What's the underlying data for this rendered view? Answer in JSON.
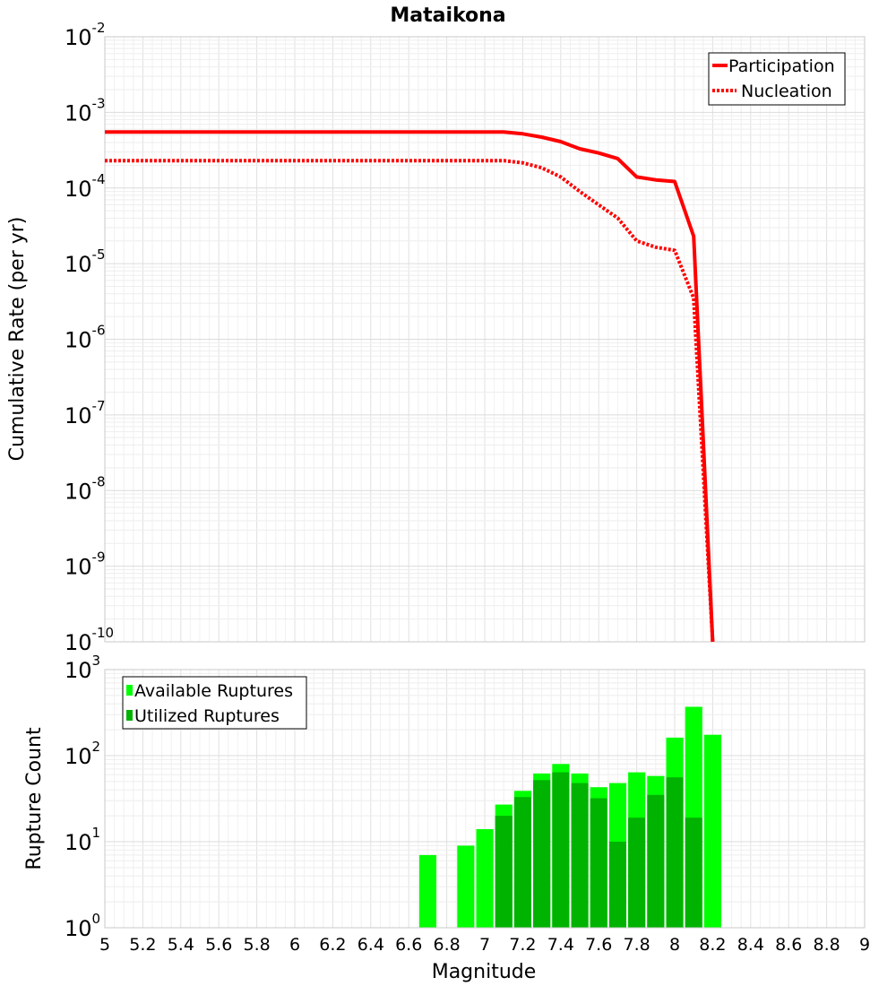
{
  "chart_data": [
    {
      "type": "line",
      "title": "Mataikona",
      "xlabel": "",
      "ylabel": "Cumulative Rate (per yr)",
      "yscale": "log",
      "xlim": [
        5,
        9
      ],
      "ylim_exp": [
        -10,
        -2
      ],
      "y_tick_labels": [
        {
          "base": "10",
          "exp": "-10"
        },
        {
          "base": "10",
          "exp": "-9"
        },
        {
          "base": "10",
          "exp": "-8"
        },
        {
          "base": "10",
          "exp": "-7"
        },
        {
          "base": "10",
          "exp": "-6"
        },
        {
          "base": "10",
          "exp": "-5"
        },
        {
          "base": "10",
          "exp": "-4"
        },
        {
          "base": "10",
          "exp": "-3"
        },
        {
          "base": "10",
          "exp": "-2"
        }
      ],
      "grid": true,
      "legend_position": "top-right",
      "series": [
        {
          "name": "Participation",
          "color": "#ff0000",
          "style": "solid",
          "points": [
            [
              5.0,
              0.00055
            ],
            [
              7.1,
              0.00055
            ],
            [
              7.2,
              0.00052
            ],
            [
              7.3,
              0.00047
            ],
            [
              7.4,
              0.00041
            ],
            [
              7.5,
              0.00033
            ],
            [
              7.6,
              0.00029
            ],
            [
              7.7,
              0.000245
            ],
            [
              7.8,
              0.00014
            ],
            [
              7.9,
              0.000128
            ],
            [
              8.0,
              0.000122
            ],
            [
              8.1,
              2.3e-05
            ],
            [
              8.2,
              1e-10
            ]
          ]
        },
        {
          "name": "Nucleation",
          "color": "#ff0000",
          "style": "dotted",
          "points": [
            [
              5.0,
              0.00023
            ],
            [
              7.1,
              0.00023
            ],
            [
              7.2,
              0.000215
            ],
            [
              7.3,
              0.000185
            ],
            [
              7.4,
              0.00014
            ],
            [
              7.5,
              9e-05
            ],
            [
              7.6,
              6e-05
            ],
            [
              7.7,
              4e-05
            ],
            [
              7.8,
              2e-05
            ],
            [
              7.9,
              1.65e-05
            ],
            [
              8.0,
              1.5e-05
            ],
            [
              8.1,
              3.5e-06
            ],
            [
              8.2,
              1e-10
            ]
          ]
        }
      ]
    },
    {
      "type": "bar",
      "title": "",
      "xlabel": "Magnitude",
      "ylabel": "Rupture Count",
      "yscale": "log",
      "xlim": [
        5,
        9
      ],
      "ylim_exp": [
        0,
        3
      ],
      "y_tick_labels": [
        {
          "base": "10",
          "exp": "0"
        },
        {
          "base": "10",
          "exp": "1"
        },
        {
          "base": "10",
          "exp": "2"
        },
        {
          "base": "10",
          "exp": "3"
        }
      ],
      "x_tick_labels": [
        "5",
        "5.2",
        "5.4",
        "5.6",
        "5.8",
        "6",
        "6.2",
        "6.4",
        "6.6",
        "6.8",
        "7",
        "7.2",
        "7.4",
        "7.6",
        "7.8",
        "8",
        "8.2",
        "8.4",
        "8.6",
        "8.8",
        "9"
      ],
      "bar_width": 0.09,
      "grid": true,
      "legend_position": "top-left",
      "series": [
        {
          "name": "Available Ruptures",
          "color": "#00ff00",
          "centers": [
            6.7,
            6.9,
            7.0,
            7.1,
            7.2,
            7.3,
            7.4,
            7.5,
            7.6,
            7.7,
            7.8,
            7.9,
            8.0,
            8.1,
            8.2
          ],
          "values": [
            7,
            9,
            14,
            27,
            39,
            62,
            80,
            62,
            43,
            48,
            64,
            58,
            162,
            370,
            175
          ]
        },
        {
          "name": "Utilized Ruptures",
          "color": "#00b300",
          "centers": [
            7.1,
            7.2,
            7.3,
            7.4,
            7.5,
            7.6,
            7.7,
            7.8,
            7.9,
            8.0,
            8.1
          ],
          "values": [
            20,
            33,
            52,
            64,
            48,
            32,
            10,
            19,
            35,
            56,
            19
          ]
        }
      ]
    }
  ]
}
